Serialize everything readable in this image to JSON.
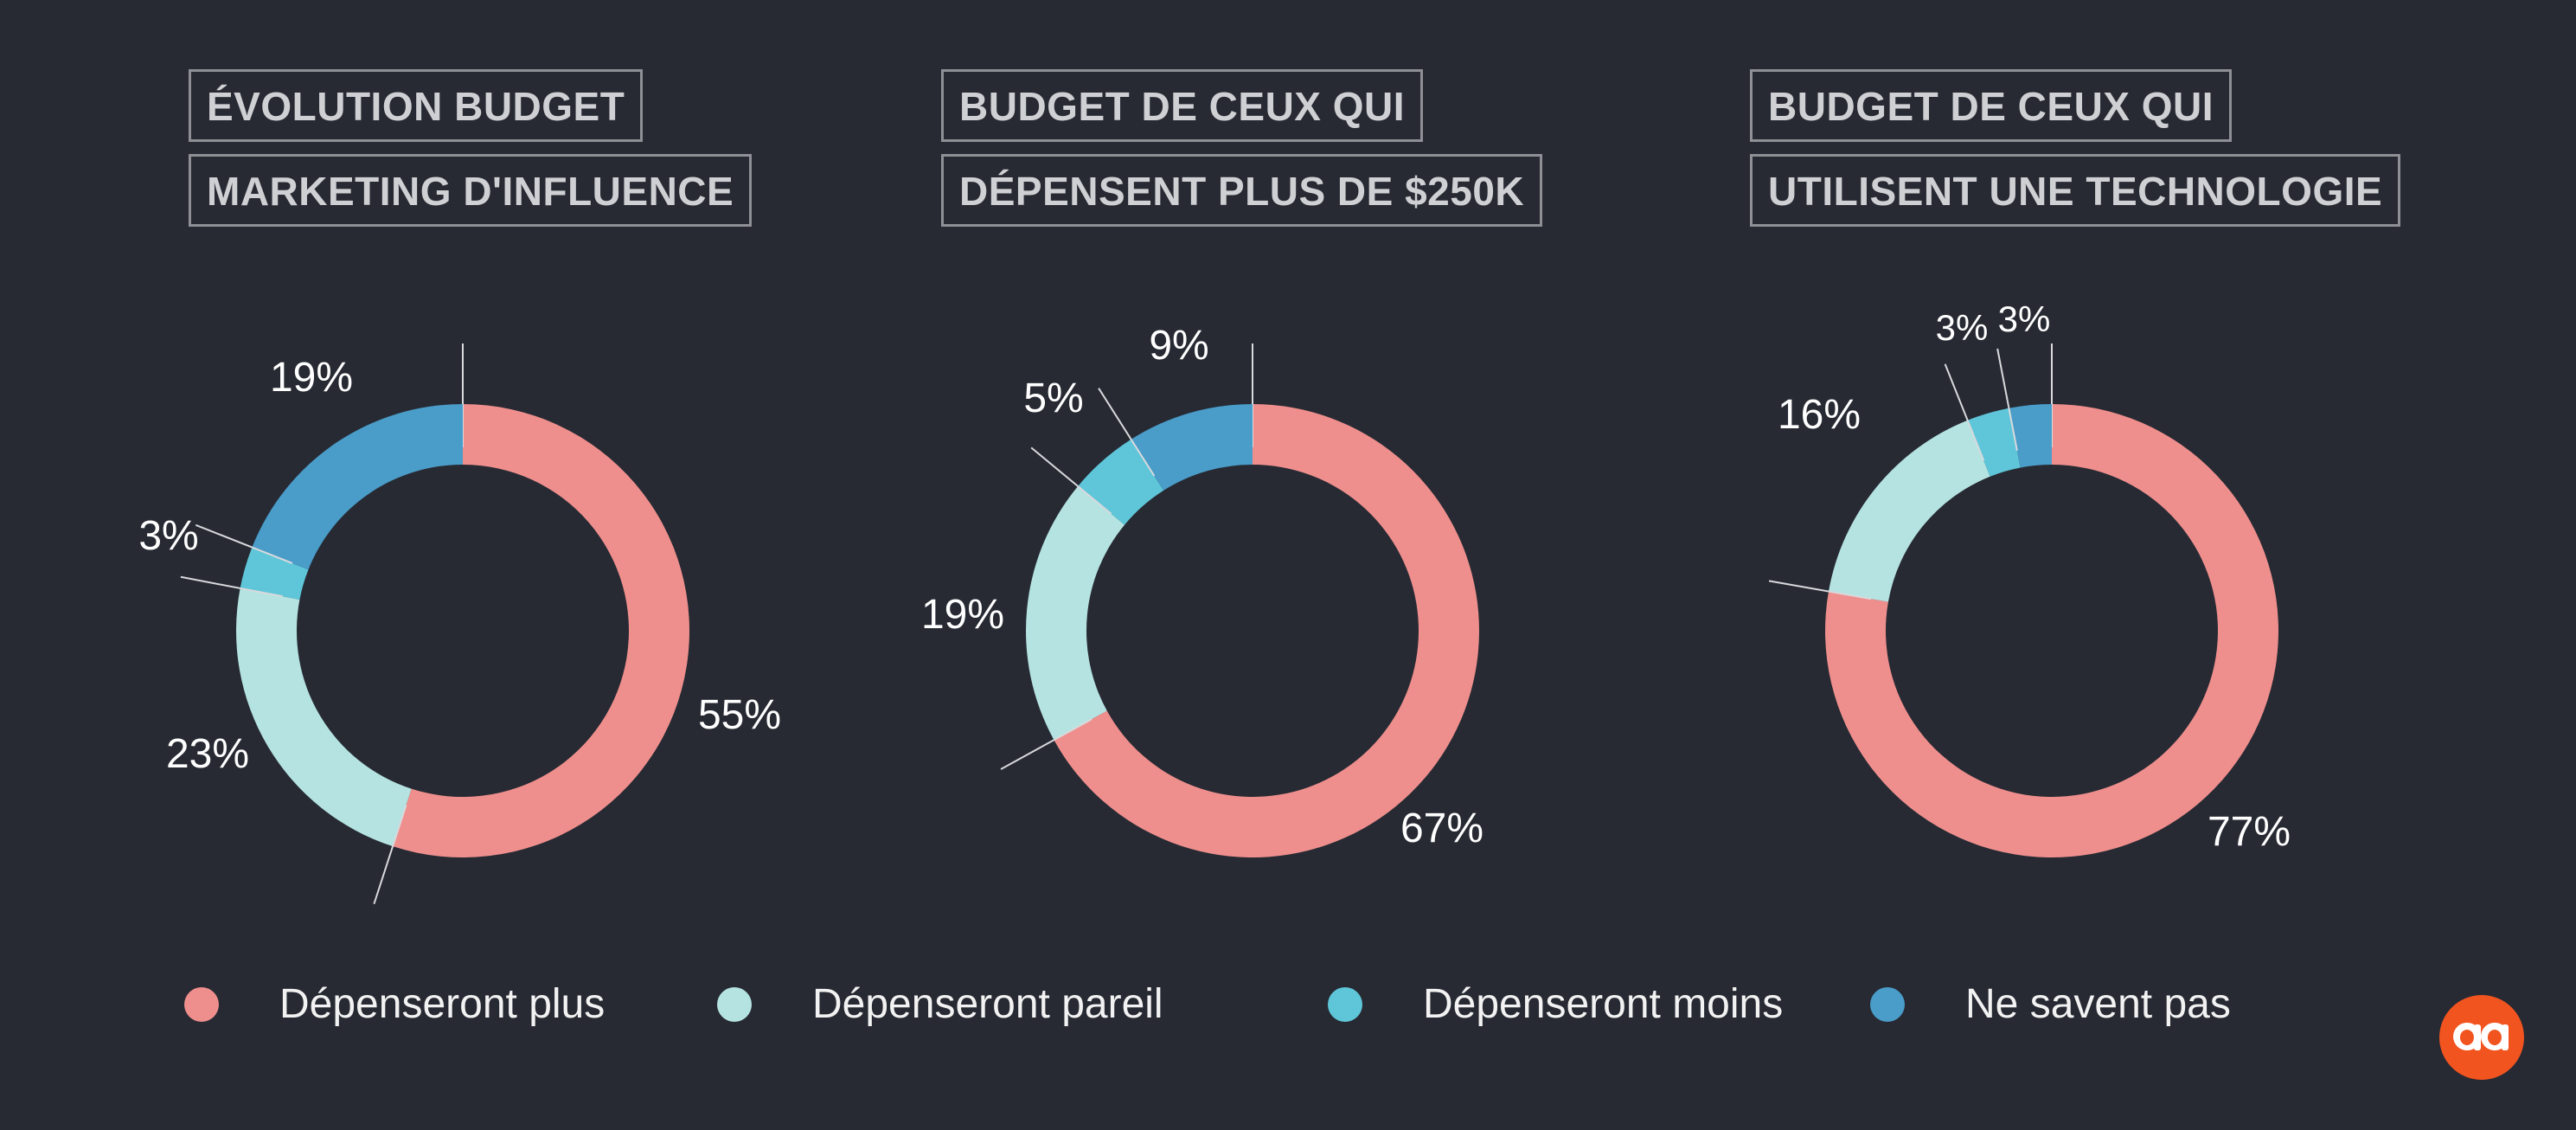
{
  "colors": {
    "background": "#272a33",
    "plus": "#ef8f8d",
    "pareil": "#b5e3e1",
    "moins": "#5fc6d9",
    "ne_savent_pas": "#4a9cc9",
    "label_text": "#ffffff",
    "title_border": "#8e9096"
  },
  "legend": [
    {
      "label": "Dépenseront plus",
      "color": "#ef8f8d"
    },
    {
      "label": "Dépenseront pareil",
      "color": "#b5e3e1"
    },
    {
      "label": "Dépenseront moins",
      "color": "#5fc6d9"
    },
    {
      "label": "Ne savent pas",
      "color": "#4a9cc9"
    }
  ],
  "logo": {
    "name": "aa-logo",
    "color": "#f2541f"
  },
  "chart_data": [
    {
      "type": "pie",
      "title_lines": [
        "ÉVOLUTION BUDGET",
        "MARKETING D'INFLUENCE"
      ],
      "categories": [
        "Dépenseront plus",
        "Dépenseront pareil",
        "Dépenseront moins",
        "Ne savent pas"
      ],
      "values": [
        55,
        23,
        3,
        19
      ],
      "labels": [
        "55%",
        "23%",
        "3%",
        "19%"
      ],
      "legend_position": "bottom"
    },
    {
      "type": "pie",
      "title_lines": [
        "BUDGET DE CEUX QUI",
        "DÉPENSENT PLUS DE $250K"
      ],
      "categories": [
        "Dépenseront plus",
        "Dépenseront pareil",
        "Dépenseront moins",
        "Ne savent pas"
      ],
      "values": [
        67,
        19,
        5,
        9
      ],
      "labels": [
        "67%",
        "19%",
        "5%",
        "9%"
      ],
      "legend_position": "bottom"
    },
    {
      "type": "pie",
      "title_lines": [
        "BUDGET DE CEUX QUI",
        "UTILISENT UNE TECHNOLOGIE"
      ],
      "categories": [
        "Dépenseront plus",
        "Dépenseront pareil",
        "Dépenseront moins",
        "Ne savent pas"
      ],
      "values": [
        77,
        16,
        3,
        3
      ],
      "labels": [
        "77%",
        "16%",
        "3%",
        "3%"
      ],
      "legend_position": "bottom"
    }
  ]
}
